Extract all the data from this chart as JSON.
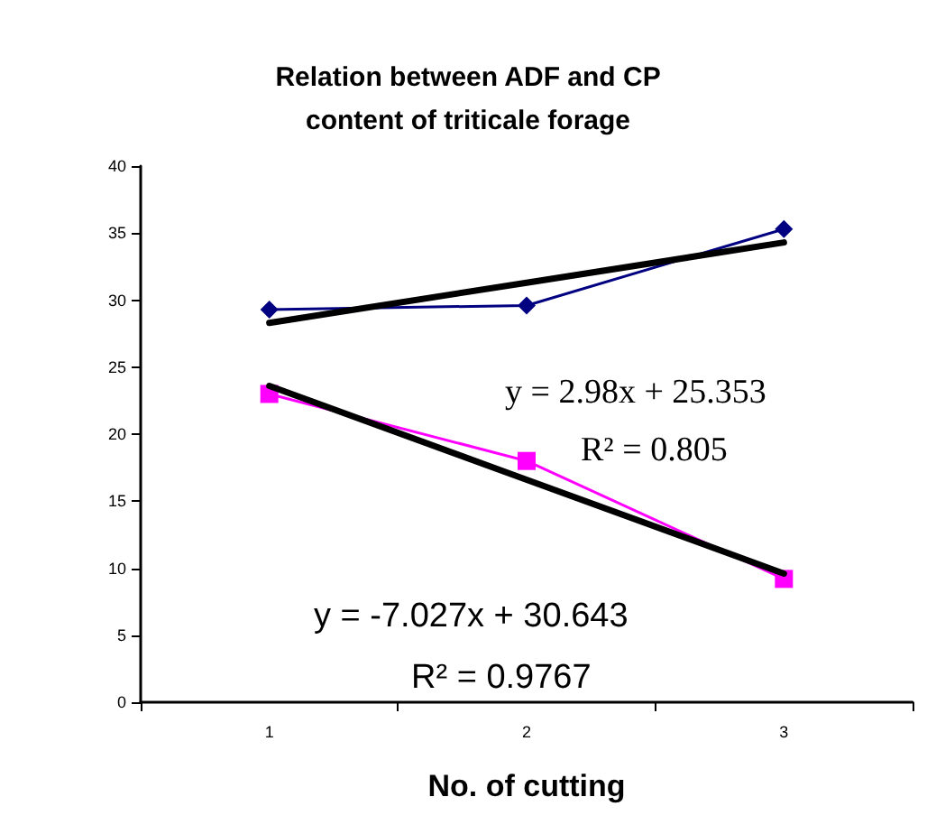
{
  "chart_data": {
    "type": "line",
    "title": "Relation between ADF and CP\ncontent of triticale forage",
    "xlabel": "No. of cutting",
    "categories": [
      "1",
      "2",
      "3"
    ],
    "series": [
      {
        "color": "#000080",
        "values": [
          29.3,
          29.6,
          35.3
        ],
        "marker": "diamond"
      },
      {
        "color": "#ff00ff",
        "values": [
          23,
          18,
          9.2
        ],
        "marker": "square"
      },
      {
        "color": "#000000",
        "values": [
          28.3,
          31.3,
          34.3
        ],
        "marker": "none"
      },
      {
        "color": "#000000",
        "values": [
          23.6,
          16.6,
          9.6
        ],
        "marker": "none"
      }
    ],
    "annotations": [
      "y = 2.98x + 25.353",
      "R² = 0.805",
      "y = -7.027x + 30.643",
      "R² = 0.9767"
    ],
    "ylim": [
      0,
      40
    ],
    "yticks": [
      0,
      5,
      10,
      15,
      20,
      25,
      30,
      35,
      40
    ],
    "grid": false
  }
}
